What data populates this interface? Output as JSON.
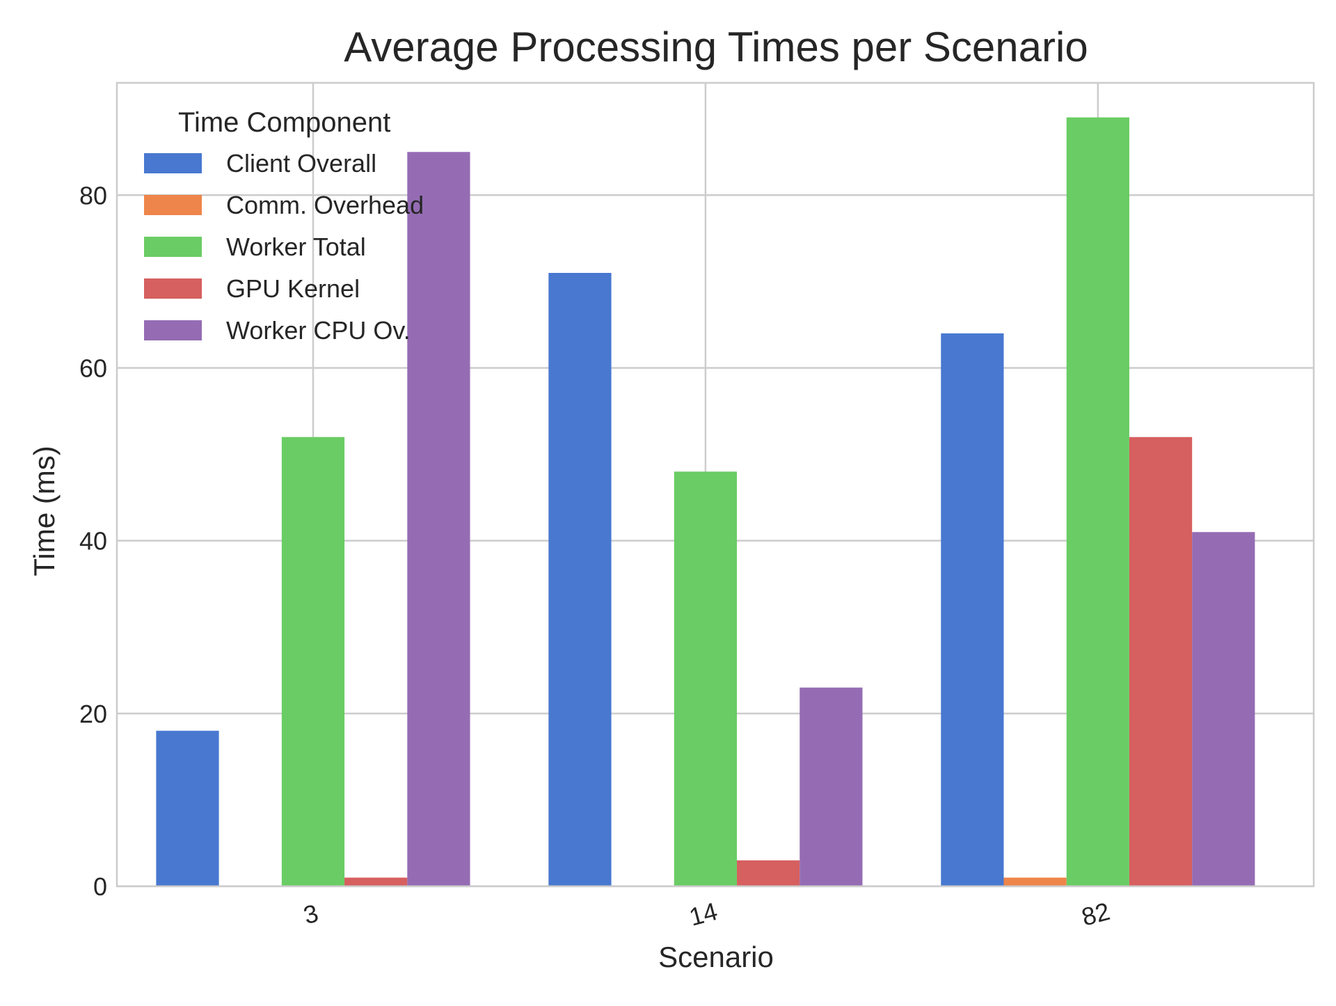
{
  "chart_data": {
    "type": "bar",
    "title": "Average Processing Times per Scenario",
    "xlabel": "Scenario",
    "ylabel": "Time (ms)",
    "categories": [
      "3",
      "14",
      "82"
    ],
    "ylim": [
      0,
      93
    ],
    "yticks": [
      0,
      20,
      40,
      60,
      80
    ],
    "grid": true,
    "legend": {
      "title": "Time Component",
      "placement": "top-left"
    },
    "series": [
      {
        "name": "Client Overall",
        "color": "#4878d0",
        "values": [
          18,
          71,
          64
        ]
      },
      {
        "name": "Comm. Overhead",
        "color": "#ee854a",
        "values": [
          0,
          0,
          1
        ]
      },
      {
        "name": "Worker Total",
        "color": "#6acc64",
        "values": [
          52,
          48,
          89
        ]
      },
      {
        "name": "GPU Kernel",
        "color": "#d65f5f",
        "values": [
          1,
          3,
          52
        ]
      },
      {
        "name": "Worker CPU Ov.",
        "color": "#956cb4",
        "values": [
          85,
          23,
          41
        ]
      }
    ]
  }
}
